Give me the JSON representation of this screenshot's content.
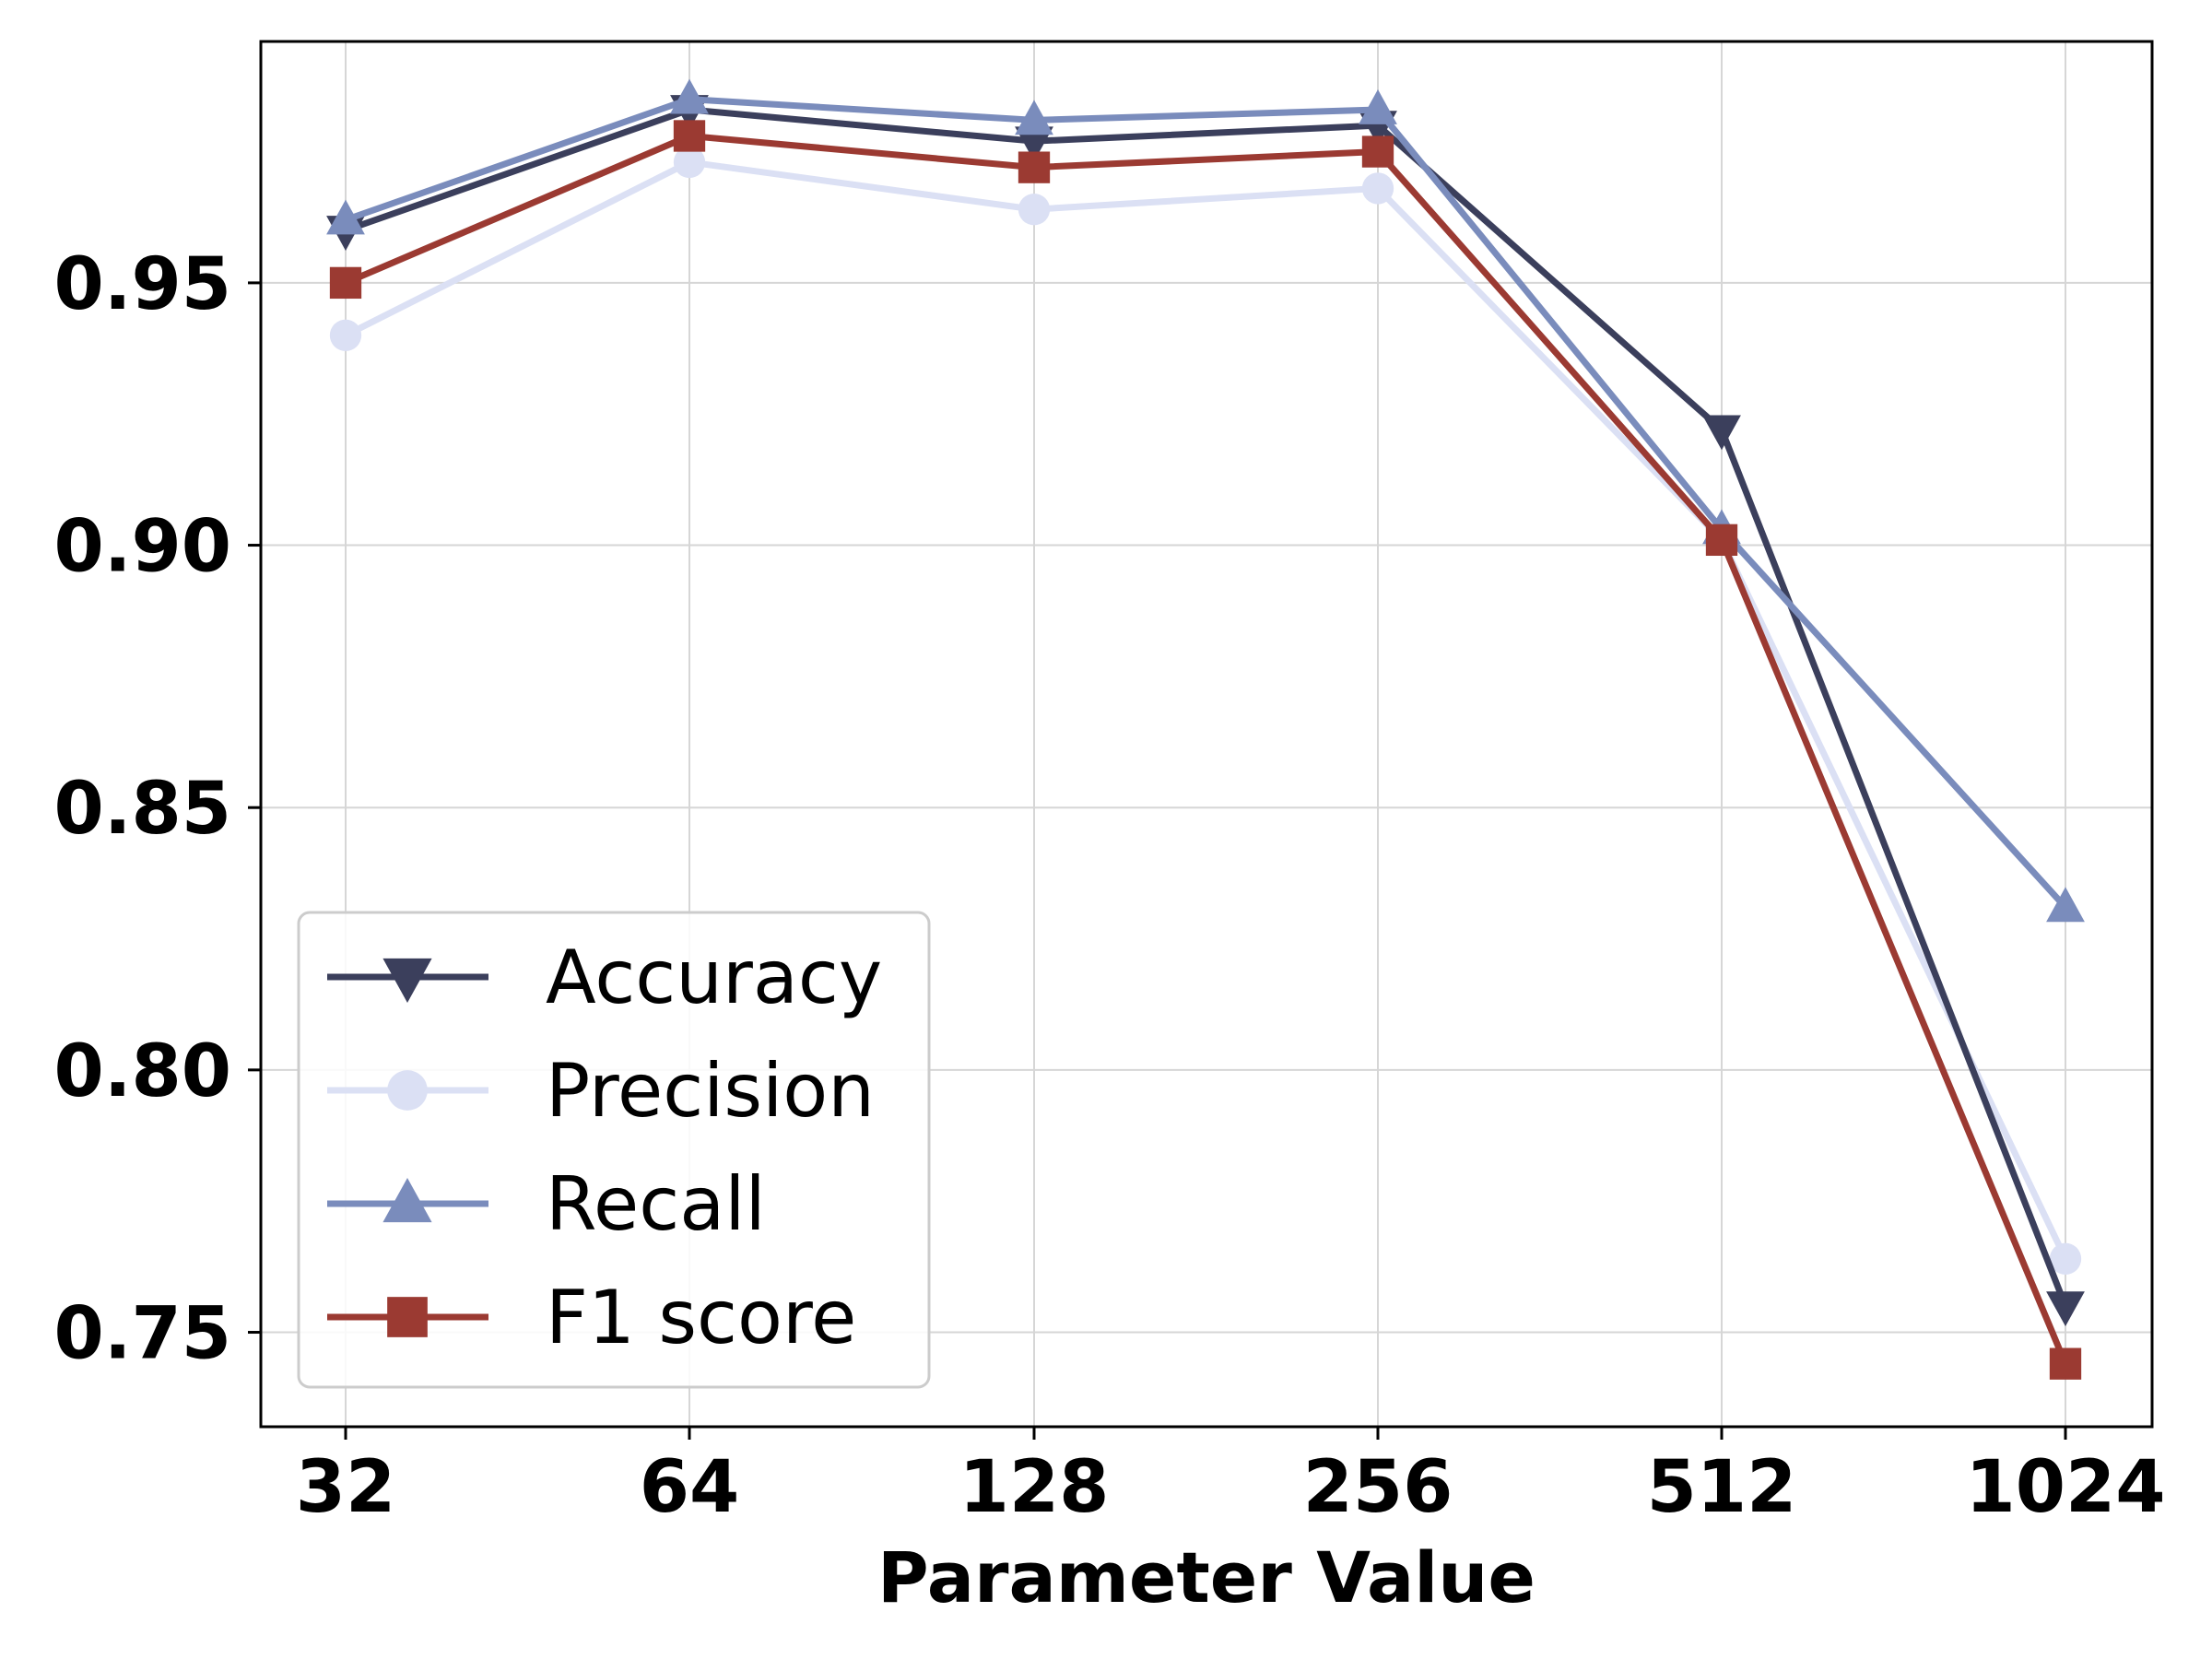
{
  "chart_data": {
    "type": "line",
    "title": "",
    "xlabel": "Parameter Value",
    "ylabel": "",
    "categories": [
      "32",
      "64",
      "128",
      "256",
      "512",
      "1024"
    ],
    "ylim": [
      0.732,
      0.996
    ],
    "yticks": [
      0.75,
      0.8,
      0.85,
      0.9,
      0.95
    ],
    "ytick_labels": [
      "0.75",
      "0.80",
      "0.85",
      "0.90",
      "0.95"
    ],
    "grid": true,
    "legend_position": "lower-left",
    "series": [
      {
        "name": "Accuracy",
        "color": "#3b3f5c",
        "marker": "triangle-down",
        "values": [
          0.96,
          0.983,
          0.977,
          0.98,
          0.922,
          0.755
        ]
      },
      {
        "name": "Precision",
        "color": "#dbe0f4",
        "marker": "circle",
        "values": [
          0.94,
          0.973,
          0.964,
          0.968,
          0.901,
          0.764
        ]
      },
      {
        "name": "Recall",
        "color": "#7a8cbc",
        "marker": "triangle-up",
        "values": [
          0.962,
          0.985,
          0.981,
          0.983,
          0.903,
          0.831
        ]
      },
      {
        "name": "F1 score",
        "color": "#9b3a32",
        "marker": "square",
        "values": [
          0.95,
          0.978,
          0.972,
          0.975,
          0.901,
          0.744
        ]
      }
    ]
  }
}
